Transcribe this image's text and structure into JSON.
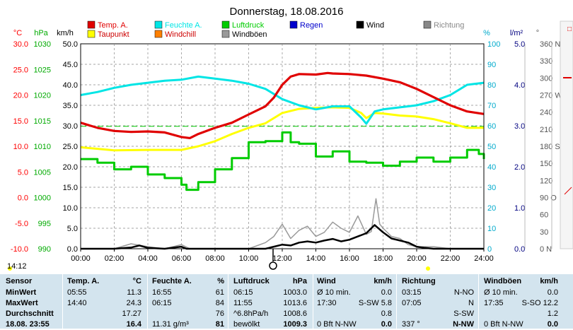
{
  "chart_data": {
    "type": "line",
    "title": "Donnerstag, 18.08.2016",
    "xlim": [
      0,
      24
    ],
    "x_ticks": [
      "00:00",
      "02:00",
      "04:00",
      "06:00",
      "08:00",
      "10:00",
      "12:00",
      "14:00",
      "16:00",
      "18:00",
      "20:00",
      "22:00",
      "24:00"
    ],
    "axes": [
      {
        "unit": "°C",
        "range": [
          -10,
          30
        ],
        "ticks": [
          "30.0",
          "25.0",
          "20.0",
          "15.0",
          "10.0",
          "5.0",
          "0.0",
          "-5.0",
          "-10.0"
        ],
        "color": "#ff0000"
      },
      {
        "unit": "hPa",
        "range": [
          990,
          1030
        ],
        "ticks": [
          "1030",
          "1025",
          "1020",
          "1015",
          "1010",
          "1005",
          "1000",
          "995",
          "990"
        ],
        "color": "#00aa00"
      },
      {
        "unit": "km/h",
        "range": [
          0,
          50
        ],
        "ticks": [
          "50.0",
          "45.0",
          "40.0",
          "35.0",
          "30.0",
          "25.0",
          "20.0",
          "15.0",
          "10.0",
          "5.0",
          "0.0"
        ],
        "color": "#000000"
      },
      {
        "unit": "%",
        "range": [
          0,
          100
        ],
        "ticks": [
          "100",
          "90",
          "80",
          "70",
          "60",
          "50",
          "40",
          "30",
          "20",
          "10",
          "0"
        ],
        "color": "#00aacc"
      },
      {
        "unit": "l/m²",
        "range": [
          0,
          5
        ],
        "ticks": [
          "5.0",
          "4.0",
          "3.0",
          "2.0",
          "1.0",
          "0.0"
        ],
        "color": "#000080"
      },
      {
        "unit": "°",
        "range": [
          0,
          360
        ],
        "ticks": [
          "360 N",
          "330",
          "300",
          "270 W",
          "240",
          "210",
          "180 S",
          "150",
          "120",
          "90 O",
          "60",
          "30",
          "0 N"
        ],
        "color": "#555555"
      }
    ],
    "legend": [
      {
        "name": "Temp. A.",
        "color": "#e00000"
      },
      {
        "name": "Feuchte A.",
        "color": "#00e5e5"
      },
      {
        "name": "Luftdruck",
        "color": "#00cc00"
      },
      {
        "name": "Regen",
        "color": "#0000cc"
      },
      {
        "name": "Wind",
        "color": "#000000"
      },
      {
        "name": "Richtung",
        "color": "#888888"
      },
      {
        "name": "Taupunkt",
        "color": "#ffff00"
      },
      {
        "name": "Windchill",
        "color": "#ff8000"
      },
      {
        "name": "Windböen",
        "color": "#999999"
      }
    ],
    "series": [
      {
        "name": "Temp. A.",
        "axis": 0,
        "color": "#e00000",
        "points": [
          [
            0,
            14.6
          ],
          [
            1,
            13.6
          ],
          [
            2,
            13.0
          ],
          [
            3,
            12.8
          ],
          [
            4,
            12.9
          ],
          [
            5,
            12.7
          ],
          [
            6,
            11.8
          ],
          [
            6.5,
            11.6
          ],
          [
            7,
            12.4
          ],
          [
            8,
            13.6
          ],
          [
            9,
            14.6
          ],
          [
            10,
            16.2
          ],
          [
            11,
            17.8
          ],
          [
            11.5,
            19.5
          ],
          [
            12,
            22.0
          ],
          [
            12.5,
            23.6
          ],
          [
            13,
            24.1
          ],
          [
            14,
            24.0
          ],
          [
            14.7,
            24.3
          ],
          [
            15,
            24.2
          ],
          [
            16,
            24.1
          ],
          [
            17,
            23.8
          ],
          [
            18,
            23.2
          ],
          [
            19,
            22.5
          ],
          [
            20,
            21.2
          ],
          [
            21,
            19.6
          ],
          [
            22,
            18.0
          ],
          [
            23,
            16.8
          ],
          [
            24,
            16.3
          ]
        ]
      },
      {
        "name": "Feuchte A.",
        "axis": 3,
        "color": "#00e5e5",
        "points": [
          [
            0,
            75
          ],
          [
            1,
            76.5
          ],
          [
            2,
            78.5
          ],
          [
            3,
            80
          ],
          [
            4,
            81
          ],
          [
            5,
            82
          ],
          [
            6,
            82.5
          ],
          [
            7,
            84
          ],
          [
            8,
            83
          ],
          [
            9,
            82
          ],
          [
            10,
            80.5
          ],
          [
            11,
            78
          ],
          [
            12,
            73
          ],
          [
            13,
            70
          ],
          [
            14,
            68
          ],
          [
            15,
            69.5
          ],
          [
            16,
            69.5
          ],
          [
            16.7,
            64
          ],
          [
            17,
            61
          ],
          [
            17.5,
            67
          ],
          [
            18,
            68
          ],
          [
            19,
            69
          ],
          [
            20,
            70
          ],
          [
            21,
            72
          ],
          [
            22,
            75
          ],
          [
            23,
            80
          ],
          [
            24,
            81
          ]
        ]
      },
      {
        "name": "Taupunkt",
        "axis": 0,
        "color": "#ffff00",
        "points": [
          [
            0,
            9.8
          ],
          [
            2,
            9.2
          ],
          [
            4,
            9.3
          ],
          [
            6,
            9.3
          ],
          [
            7,
            10.0
          ],
          [
            8,
            11.0
          ],
          [
            9,
            12.4
          ],
          [
            10,
            13.6
          ],
          [
            11,
            14.5
          ],
          [
            12,
            16.5
          ],
          [
            13,
            17.3
          ],
          [
            14,
            17.5
          ],
          [
            15,
            17.6
          ],
          [
            16,
            17.5
          ],
          [
            16.7,
            16.5
          ],
          [
            17,
            15.5
          ],
          [
            17.5,
            16.5
          ],
          [
            18,
            16.4
          ],
          [
            19,
            16.0
          ],
          [
            20,
            15.8
          ],
          [
            21,
            15.3
          ],
          [
            22,
            14.5
          ],
          [
            23,
            13.6
          ],
          [
            24,
            13.6
          ]
        ]
      },
      {
        "name": "Luftdruck",
        "axis": 1,
        "color": "#00cc00",
        "points": [
          [
            0,
            1007.5
          ],
          [
            1,
            1006.8
          ],
          [
            2,
            1005.5
          ],
          [
            3,
            1006.0
          ],
          [
            4,
            1004.5
          ],
          [
            5,
            1003.8
          ],
          [
            6,
            1002.5
          ],
          [
            6.3,
            1001.5
          ],
          [
            7,
            1003.0
          ],
          [
            8,
            1005.5
          ],
          [
            9,
            1007.7
          ],
          [
            10,
            1010.8
          ],
          [
            11,
            1011.0
          ],
          [
            12,
            1012.7
          ],
          [
            12.5,
            1010.8
          ],
          [
            13,
            1010.5
          ],
          [
            14,
            1008.0
          ],
          [
            15,
            1009.0
          ],
          [
            16,
            1007.0
          ],
          [
            17,
            1006.8
          ],
          [
            18,
            1006.2
          ],
          [
            19,
            1007.0
          ],
          [
            20,
            1007.8
          ],
          [
            21,
            1007.0
          ],
          [
            22,
            1007.8
          ],
          [
            23,
            1009.3
          ],
          [
            23.7,
            1008.5
          ],
          [
            24,
            1007.5
          ]
        ]
      },
      {
        "name": "Windböen",
        "axis": 2,
        "color": "#999999",
        "points": [
          [
            0,
            0
          ],
          [
            2,
            0
          ],
          [
            3,
            1.2
          ],
          [
            4,
            0.5
          ],
          [
            5,
            0
          ],
          [
            6,
            1.0
          ],
          [
            6.5,
            0
          ],
          [
            10,
            0
          ],
          [
            11,
            1.5
          ],
          [
            11.5,
            3.0
          ],
          [
            12,
            6.0
          ],
          [
            12.5,
            2.5
          ],
          [
            13,
            4.5
          ],
          [
            13.5,
            5.5
          ],
          [
            14,
            3.0
          ],
          [
            14.5,
            4.0
          ],
          [
            15,
            6.5
          ],
          [
            15.5,
            5.0
          ],
          [
            16,
            4.0
          ],
          [
            16.5,
            8.0
          ],
          [
            17,
            3.5
          ],
          [
            17.3,
            4.2
          ],
          [
            17.58,
            12.2
          ],
          [
            17.8,
            6.0
          ],
          [
            18,
            5.0
          ],
          [
            18.5,
            3.0
          ],
          [
            19,
            2.5
          ],
          [
            19.5,
            1.0
          ],
          [
            20,
            0.5
          ],
          [
            21,
            0.5
          ],
          [
            22,
            0
          ],
          [
            24,
            0
          ]
        ]
      },
      {
        "name": "Wind",
        "axis": 2,
        "color": "#000000",
        "points": [
          [
            0,
            0
          ],
          [
            2,
            0
          ],
          [
            3,
            0.3
          ],
          [
            3.5,
            0.8
          ],
          [
            4,
            0.2
          ],
          [
            5,
            0
          ],
          [
            6,
            0.5
          ],
          [
            6.3,
            0
          ],
          [
            11,
            0
          ],
          [
            11.5,
            0.5
          ],
          [
            12,
            1.0
          ],
          [
            12.5,
            0.8
          ],
          [
            13,
            1.5
          ],
          [
            13.5,
            1.8
          ],
          [
            14,
            1.5
          ],
          [
            14.5,
            2.0
          ],
          [
            15,
            2.4
          ],
          [
            15.5,
            1.8
          ],
          [
            16,
            2.2
          ],
          [
            16.5,
            3.0
          ],
          [
            17,
            3.8
          ],
          [
            17.5,
            5.8
          ],
          [
            18,
            4.0
          ],
          [
            18.5,
            2.5
          ],
          [
            19,
            2.0
          ],
          [
            19.5,
            1.5
          ],
          [
            20,
            0.5
          ],
          [
            20.5,
            0.2
          ],
          [
            21,
            0
          ],
          [
            24,
            0
          ]
        ]
      }
    ],
    "reference_line": {
      "axis": 0,
      "value": 13.9,
      "color": "#00cc00"
    },
    "marker_time": "14:12"
  },
  "stats": {
    "headers": [
      "Sensor",
      "Temp. A.",
      "°C",
      "Feuchte A.",
      "%",
      "Luftdruck",
      "hPa",
      "Wind",
      "km/h",
      "Richtung",
      "Windböen",
      "km/h"
    ],
    "rows": [
      {
        "label": "MinWert",
        "cells": [
          "05:55",
          "11.3",
          "16:55",
          "61",
          "06:15",
          "1003.0",
          "Ø 10 min.",
          "0.0",
          "03:15",
          "N-NO",
          "Ø 10 min.",
          "0.0"
        ]
      },
      {
        "label": "MaxWert",
        "cells": [
          "14:40",
          "24.3",
          "06:15",
          "84",
          "11:55",
          "1013.6",
          "17:30",
          "S-SW 5.8",
          "07:05",
          "N",
          "17:35",
          "S-SO 12.2"
        ]
      },
      {
        "label": "Durchschnitt",
        "cells": [
          "",
          "17.27",
          "",
          "76",
          "^6.8hPa/h",
          "1008.6",
          "",
          "0.8",
          "",
          "S-SW",
          "",
          "1.2"
        ]
      },
      {
        "label": "18.08. 23:55",
        "cells": [
          "",
          "16.4",
          "11.31 g/m³",
          "81",
          "bewölkt",
          "1009.3",
          "0 Bft N-NW",
          "0.0",
          "337 °",
          "N-NW",
          "0 Bft N-NW",
          "0.0"
        ]
      }
    ]
  }
}
